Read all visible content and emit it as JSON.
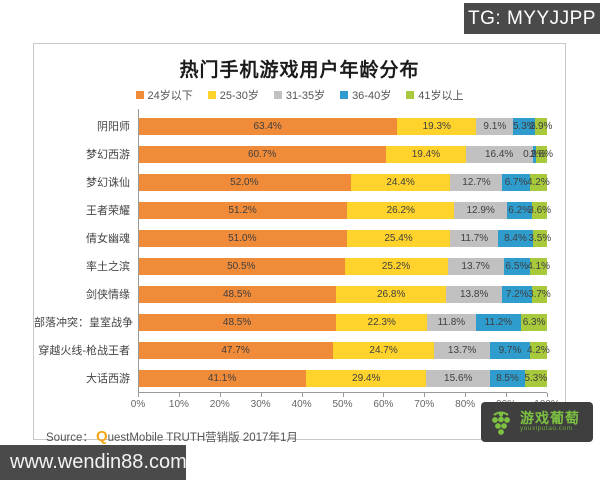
{
  "overlays": {
    "tg": "TG: MYYJJPP",
    "site": "www.wendin88.com"
  },
  "chart": {
    "title": "热门手机游戏用户年龄分布",
    "source_prefix": "Source：",
    "source_q": "Q",
    "source_rest": "uestMobile TRUTH营销版 2017年1月"
  },
  "watermark": {
    "brand": "游戏葡萄",
    "domain": "youxiputao.com"
  },
  "chart_data": {
    "type": "bar",
    "orientation": "horizontal",
    "stacked": true,
    "title": "热门手机游戏用户年龄分布",
    "legend_position": "top",
    "value_suffix": "%",
    "categories": [
      "阴阳师",
      "梦幻西游",
      "梦幻诛仙",
      "王者荣耀",
      "倩女幽魂",
      "率土之滨",
      "剑侠情缘",
      "部落冲突：皇室战争",
      "穿越火线-枪战王者",
      "大话西游"
    ],
    "series": [
      {
        "name": "24岁以下",
        "color": "#F08B3A",
        "values": [
          63.4,
          60.7,
          52.0,
          51.2,
          51.0,
          50.5,
          48.5,
          48.5,
          47.7,
          41.1
        ]
      },
      {
        "name": "25-30岁",
        "color": "#FFD32B",
        "values": [
          19.3,
          19.4,
          24.4,
          26.2,
          25.4,
          25.2,
          26.8,
          22.3,
          24.7,
          29.4
        ]
      },
      {
        "name": "31-35岁",
        "color": "#C1C1C1",
        "values": [
          9.1,
          16.4,
          12.7,
          12.9,
          11.7,
          13.7,
          13.8,
          11.8,
          13.7,
          15.6
        ]
      },
      {
        "name": "36-40岁",
        "color": "#2F9CCE",
        "values": [
          5.3,
          0.9,
          6.7,
          6.2,
          8.4,
          6.5,
          7.2,
          11.2,
          9.7,
          8.5
        ]
      },
      {
        "name": "41岁以上",
        "color": "#A8C93C",
        "values": [
          2.9,
          2.6,
          4.2,
          3.6,
          3.5,
          4.1,
          3.7,
          6.3,
          4.2,
          5.3
        ]
      }
    ],
    "x_axis": {
      "min": 0,
      "max": 100,
      "ticks": [
        "0%",
        "10%",
        "20%",
        "30%",
        "40%",
        "50%",
        "60%",
        "70%",
        "80%",
        "90%",
        "100%"
      ]
    }
  }
}
